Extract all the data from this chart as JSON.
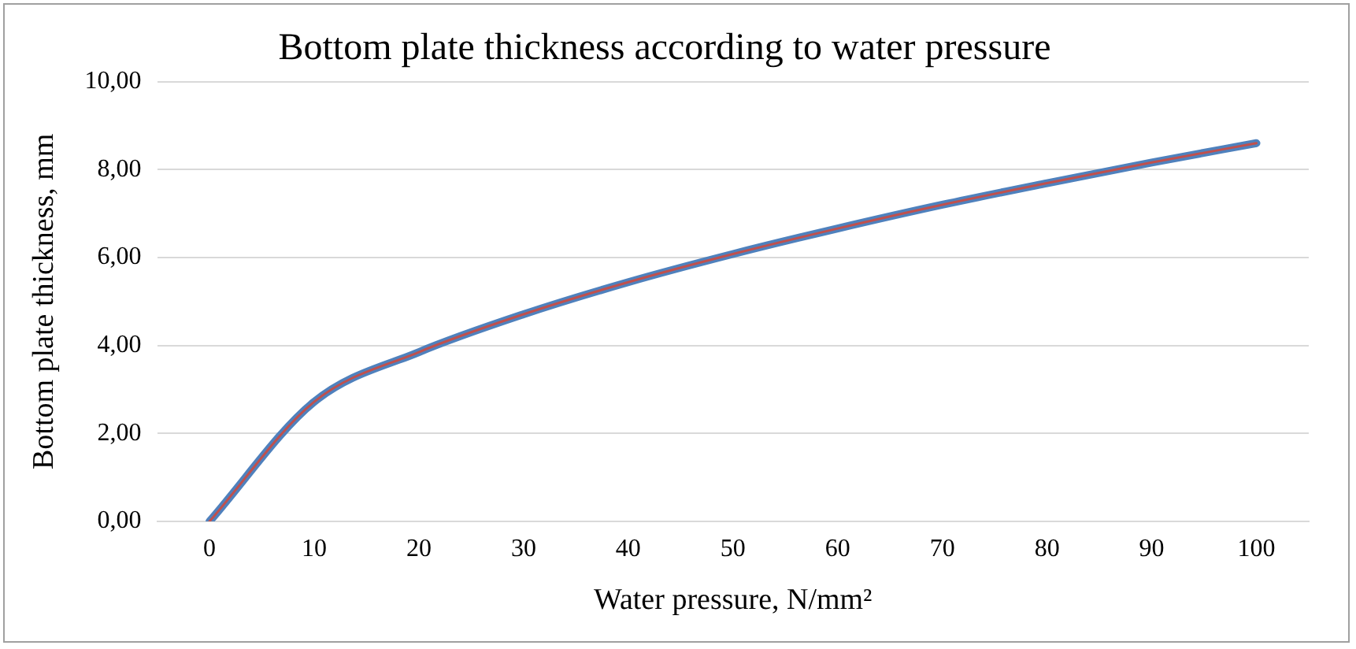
{
  "chart_data": {
    "type": "line",
    "title": "Bottom plate thickness according to water pressure",
    "xlabel": "Water pressure, N/mm²",
    "ylabel": "Bottom plate thickness, mm",
    "categories": [
      "0",
      "10",
      "20",
      "30",
      "40",
      "50",
      "60",
      "70",
      "80",
      "90",
      "100"
    ],
    "series": [
      {
        "color": "#c0504d",
        "values": [
          0,
          2.72,
          3.85,
          4.71,
          5.44,
          6.08,
          6.66,
          7.2,
          7.69,
          8.16,
          8.6
        ]
      },
      {
        "color": "#4f81bd",
        "values": [
          0,
          2.72,
          3.85,
          4.71,
          5.44,
          6.08,
          6.66,
          7.2,
          7.69,
          8.16,
          8.6
        ]
      }
    ],
    "ylim": [
      0,
      10
    ],
    "yticks": [
      {
        "value": 0,
        "label": "0,00"
      },
      {
        "value": 2,
        "label": "2,00"
      },
      {
        "value": 4,
        "label": "4,00"
      },
      {
        "value": 6,
        "label": "6,00"
      },
      {
        "value": 8,
        "label": "8,00"
      },
      {
        "value": 10,
        "label": "10,00"
      }
    ],
    "grid": "y",
    "legend": false,
    "marker": "none",
    "line_style": "solid"
  }
}
